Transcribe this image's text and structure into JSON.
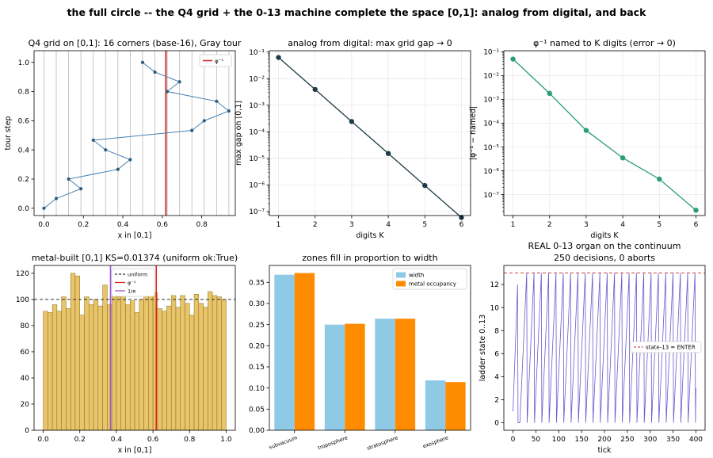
{
  "suptitle": "the full circle -- the Q4 grid + the 0-13 machine complete the space [0,1]: analog from digital, and back",
  "chart_data": [
    {
      "id": "p1",
      "type": "line",
      "title": "Q4 grid on [0,1]: 16 corners (base-16), Gray tour",
      "xlabel": "x in [0,1]",
      "ylabel": "tour step",
      "xlim": [
        -0.05,
        0.97
      ],
      "ylim": [
        -0.05,
        1.08
      ],
      "xticks": [
        0.0,
        0.2,
        0.4,
        0.6,
        0.8
      ],
      "yticks": [
        0.0,
        0.2,
        0.4,
        0.6,
        0.8,
        1.0
      ],
      "grid_vlines": [
        0.0,
        0.0625,
        0.125,
        0.1875,
        0.25,
        0.3125,
        0.375,
        0.4375,
        0.5,
        0.5625,
        0.625,
        0.6875,
        0.75,
        0.8125,
        0.875,
        0.9375
      ],
      "x": [
        0.0,
        0.0625,
        0.1875,
        0.125,
        0.375,
        0.4375,
        0.3125,
        0.25,
        0.75,
        0.8125,
        0.9375,
        0.875,
        0.625,
        0.6875,
        0.5625,
        0.5
      ],
      "y": [
        0.0,
        0.0667,
        0.1333,
        0.2,
        0.2667,
        0.3333,
        0.4,
        0.4667,
        0.5333,
        0.6,
        0.6667,
        0.7333,
        0.8,
        0.8667,
        0.9333,
        1.0
      ],
      "marker_line": {
        "name": "φ⁻¹",
        "x": 0.618,
        "color": "#d62728"
      },
      "series_color": "#4682b4",
      "legend": {
        "position": "upper right",
        "entries": [
          "φ⁻¹"
        ]
      }
    },
    {
      "id": "p2",
      "type": "line",
      "title": "analog from digital: max grid gap → 0",
      "xlabel": "digits K",
      "ylabel": "max gap on [0,1]",
      "yscale": "log",
      "xlim": [
        0.75,
        6.25
      ],
      "ylim_exp": [
        -7.15,
        -0.95
      ],
      "xticks": [
        1,
        2,
        3,
        4,
        5,
        6
      ],
      "yticks_exp": [
        -7,
        -6,
        -5,
        -4,
        -3,
        -2,
        -1
      ],
      "x": [
        1,
        2,
        3,
        4,
        5,
        6
      ],
      "y": [
        0.0625,
        0.00390625,
        0.000244,
        1.53e-05,
        9.54e-07,
        5.96e-08
      ],
      "series_color": "#1f3a45",
      "grid": true
    },
    {
      "id": "p3",
      "type": "line",
      "title": "φ⁻¹ named to K digits (error → 0)",
      "xlabel": "digits K",
      "ylabel": "|φ⁻¹ − named|",
      "yscale": "log",
      "xlim": [
        0.75,
        6.25
      ],
      "ylim_exp": [
        -7.88,
        -0.95
      ],
      "xticks": [
        1,
        2,
        3,
        4,
        5,
        6
      ],
      "yticks_exp": [
        -7,
        -6,
        -5,
        -4,
        -3,
        -2,
        -1
      ],
      "x": [
        1,
        2,
        3,
        4,
        5,
        6
      ],
      "y": [
        0.05,
        0.0018,
        5e-05,
        3.5e-06,
        4.5e-07,
        2.2e-08
      ],
      "series_color": "#2a9d78",
      "grid": true
    },
    {
      "id": "p4",
      "type": "bar",
      "title": "metal-built [0,1]  KS=0.01374 (uniform ok:True)",
      "xlabel": "x in [0,1]",
      "xlim": [
        -0.05,
        1.05
      ],
      "ylim": [
        0,
        126
      ],
      "xticks": [
        0.0,
        0.2,
        0.4,
        0.6,
        0.8,
        1.0
      ],
      "yticks": [
        0,
        20,
        40,
        60,
        80,
        100,
        120
      ],
      "bin_width": 0.025,
      "values": [
        91,
        90,
        96,
        91,
        102,
        93,
        120,
        118,
        88,
        102,
        96,
        100,
        95,
        111,
        96,
        105,
        102,
        104,
        96,
        99,
        90,
        100,
        104,
        104,
        105,
        93,
        91,
        95,
        103,
        94,
        103,
        97,
        88,
        104,
        97,
        94,
        106,
        103,
        102,
        100
      ],
      "bar_color": "#e8c46a",
      "ref_lines": [
        {
          "name": "uniform",
          "value": 100,
          "orient": "h",
          "color": "#333333",
          "dash": true
        },
        {
          "name": "φ⁻¹",
          "value": 0.618,
          "orient": "v",
          "color": "#d62728",
          "dash": false
        },
        {
          "name": "1/e",
          "value": 0.3679,
          "orient": "v",
          "color": "#9b59d0",
          "dash": false
        }
      ],
      "legend": {
        "position": "upper center",
        "entries": [
          "uniform",
          "φ⁻¹",
          "1/e"
        ]
      }
    },
    {
      "id": "p5",
      "type": "bar",
      "title": "zones fill in proportion to width",
      "categories": [
        "subvacuum",
        "troposphere",
        "stratosphere",
        "exosphere"
      ],
      "ylim": [
        0,
        0.39
      ],
      "yticks": [
        0.0,
        0.05,
        0.1,
        0.15,
        0.2,
        0.25,
        0.3,
        0.35
      ],
      "series": [
        {
          "name": "width",
          "values": [
            0.368,
            0.25,
            0.264,
            0.118
          ],
          "color": "#8ecae6"
        },
        {
          "name": "metal occupancy",
          "values": [
            0.372,
            0.252,
            0.264,
            0.114
          ],
          "color": "#ff8c00"
        }
      ],
      "legend": {
        "position": "upper right",
        "entries": [
          "width",
          "metal occupancy"
        ]
      }
    },
    {
      "id": "p6",
      "type": "line",
      "title": "REAL 0-13 organ on the continuum",
      "subtitle": "250 decisions, 0 aborts",
      "xlabel": "tick",
      "ylabel": "ladder state 0..13",
      "xlim": [
        -20,
        420
      ],
      "ylim": [
        -0.65,
        13.65
      ],
      "xticks": [
        0,
        50,
        100,
        150,
        200,
        250,
        300,
        350,
        400
      ],
      "yticks": [
        0,
        2,
        4,
        6,
        8,
        10,
        12
      ],
      "sawtooth": {
        "first_x": 0,
        "first_y": 1,
        "first_peak_x": 10,
        "first_peak_y": 12,
        "start_x": 15,
        "period": 16,
        "peak": 13,
        "end_x": 400,
        "end_y": 3
      },
      "series_color": "#6a5acd",
      "marker_line": {
        "name": "state-13 = ENTER",
        "y": 13,
        "color": "#d62728",
        "dash": true
      },
      "legend": {
        "position": "center right",
        "entries": [
          "state-13 = ENTER"
        ]
      }
    }
  ]
}
